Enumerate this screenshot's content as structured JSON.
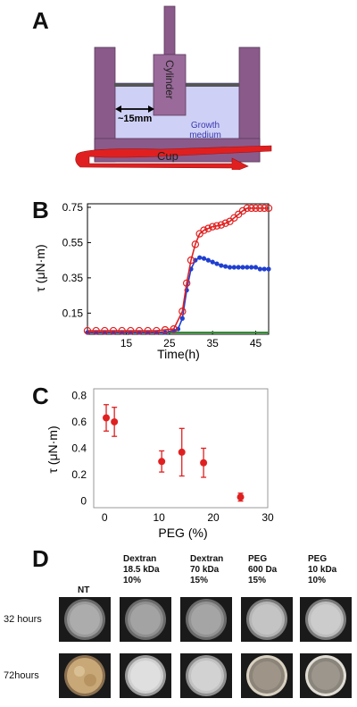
{
  "panels": {
    "a": {
      "letter": "A",
      "labels": {
        "cylinder": "Cylinder",
        "gap": "~15mm",
        "medium_line1": "Growth",
        "medium_line2": "medium",
        "cup": "Cup"
      },
      "colors": {
        "cup": "#8a5a8a",
        "medium": "#cfd0f5",
        "arrow": "#e02020"
      }
    },
    "b": {
      "letter": "B",
      "chart_data": {
        "type": "line",
        "xlabel": "Time(h)",
        "ylabel": "τ (μN·m)",
        "xlim": [
          6,
          48
        ],
        "ylim": [
          0.03,
          0.77
        ],
        "xticks": [
          15,
          25,
          35,
          45
        ],
        "yticks": [
          0.15,
          0.35,
          0.55,
          0.75
        ],
        "series": [
          {
            "color": "#e02020",
            "marker": "open-circle",
            "x": [
              6,
              8,
              10,
              12,
              14,
              16,
              18,
              20,
              22,
              24,
              26,
              28,
              29,
              30,
              31,
              32,
              33,
              34,
              35,
              36,
              37,
              38,
              39,
              40,
              41,
              42,
              43,
              44,
              45,
              46,
              47,
              48
            ],
            "y": [
              0.05,
              0.05,
              0.05,
              0.05,
              0.05,
              0.05,
              0.05,
              0.05,
              0.05,
              0.055,
              0.06,
              0.16,
              0.32,
              0.45,
              0.54,
              0.6,
              0.62,
              0.63,
              0.64,
              0.645,
              0.65,
              0.66,
              0.67,
              0.69,
              0.71,
              0.73,
              0.745,
              0.745,
              0.745,
              0.745,
              0.745,
              0.745
            ]
          },
          {
            "color": "#1f3fd0",
            "marker": "filled-circle",
            "x": [
              6,
              8,
              10,
              12,
              14,
              16,
              18,
              20,
              22,
              24,
              26,
              27,
              28,
              29,
              30,
              31,
              32,
              33,
              34,
              35,
              36,
              37,
              38,
              39,
              40,
              41,
              42,
              43,
              44,
              45,
              46,
              47,
              48
            ],
            "y": [
              0.04,
              0.04,
              0.04,
              0.04,
              0.04,
              0.04,
              0.04,
              0.04,
              0.04,
              0.04,
              0.05,
              0.06,
              0.12,
              0.28,
              0.4,
              0.45,
              0.465,
              0.46,
              0.45,
              0.44,
              0.43,
              0.42,
              0.415,
              0.41,
              0.41,
              0.41,
              0.41,
              0.41,
              0.41,
              0.41,
              0.4,
              0.4,
              0.4
            ]
          },
          {
            "color": "#2f8f2f",
            "marker": "none",
            "x": [
              6,
              48
            ],
            "y": [
              0.04,
              0.04
            ]
          }
        ]
      }
    },
    "c": {
      "letter": "C",
      "chart_data": {
        "type": "scatter",
        "xlabel": "PEG (%)",
        "ylabel": "τ (μN·m)",
        "xlim": [
          -2,
          30
        ],
        "ylim": [
          -0.05,
          0.85
        ],
        "xticks": [
          0,
          10,
          20,
          30
        ],
        "yticks": [
          0,
          0.2,
          0.4,
          0.6,
          0.8
        ],
        "points": [
          {
            "x": 0.3,
            "y": 0.63,
            "err": 0.1
          },
          {
            "x": 1.8,
            "y": 0.6,
            "err": 0.11
          },
          {
            "x": 10.5,
            "y": 0.3,
            "err": 0.08
          },
          {
            "x": 14.2,
            "y": 0.37,
            "err": 0.18
          },
          {
            "x": 18.2,
            "y": 0.29,
            "err": 0.11
          },
          {
            "x": 25.0,
            "y": 0.03,
            "err": 0.03
          }
        ],
        "color": "#e02020"
      }
    },
    "d": {
      "letter": "D",
      "columns": [
        {
          "line1": "NT",
          "line2": "",
          "line3": ""
        },
        {
          "line1": "Dextran",
          "line2": "18.5 kDa",
          "line3": "10%"
        },
        {
          "line1": "Dextran",
          "line2": "70 kDa",
          "line3": "15%"
        },
        {
          "line1": "PEG",
          "line2": "600 Da",
          "line3": "15%"
        },
        {
          "line1": "PEG",
          "line2": "10 kDa",
          "line3": "10%"
        }
      ],
      "rows": [
        "32 hours",
        "72hours"
      ]
    }
  }
}
